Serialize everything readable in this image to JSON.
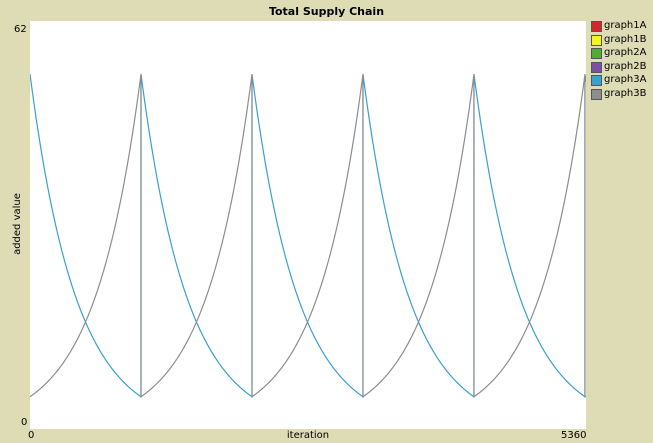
{
  "chart_data": {
    "type": "line",
    "title": "Total Supply Chain",
    "xlabel": "iteration",
    "ylabel": "added value",
    "xlim": [
      0,
      5360
    ],
    "ylim": [
      0,
      62
    ],
    "x_tick_labels": [
      "0",
      "5360"
    ],
    "y_tick_labels": [
      "0",
      "62"
    ],
    "legend_position": "right",
    "grid": false,
    "cycle_period": 1070,
    "peak_value": 55,
    "trough_value": 5,
    "last_cycle_end": 5360,
    "series": [
      {
        "name": "graph1A",
        "color": "#d62728",
        "pattern": "none"
      },
      {
        "name": "graph1B",
        "color": "#f5f51f",
        "pattern": "none"
      },
      {
        "name": "graph2A",
        "color": "#4caf33",
        "pattern": "none"
      },
      {
        "name": "graph2B",
        "color": "#7b4fa8",
        "pattern": "none"
      },
      {
        "name": "graph3A",
        "color": "#3a9fd1",
        "pattern": "decay"
      },
      {
        "name": "graph3B",
        "color": "#8d8d8d",
        "pattern": "growth"
      }
    ]
  }
}
